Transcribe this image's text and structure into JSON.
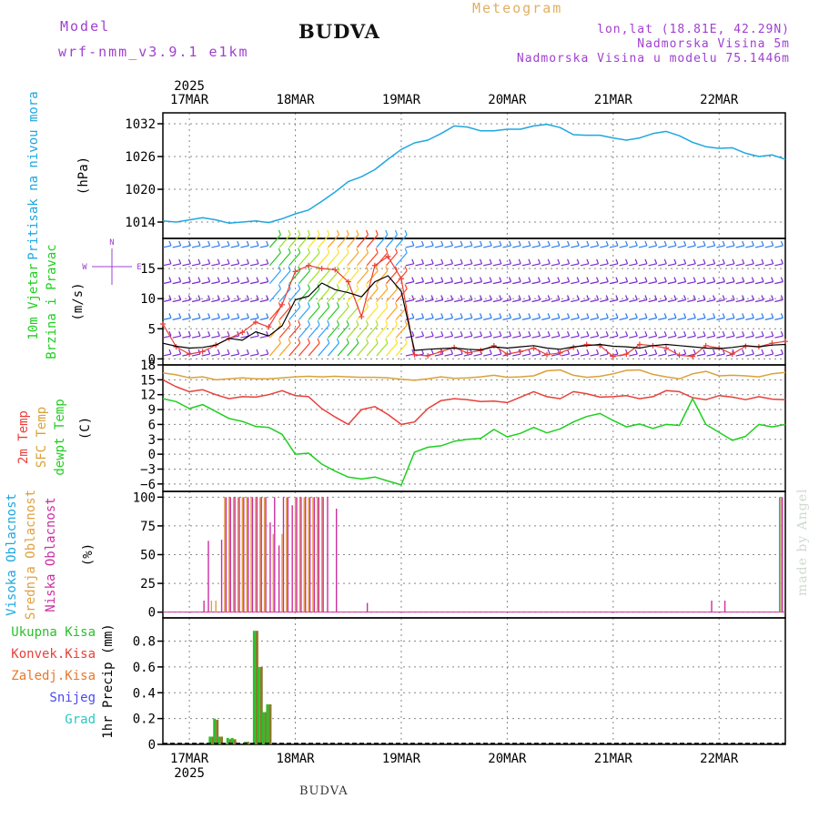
{
  "header": {
    "model_label": "Model",
    "model_name": "wrf-nmm_v3.9.1 e1km",
    "station_title": "BUDVA",
    "product_title": "Meteogram",
    "lonlat": "lon,lat (18.81E, 42.29N)",
    "elevation": "Nadmorska Visina 5m",
    "model_elevation": "Nadmorska Visina u modelu 75.1446m",
    "credit": "made by Angel",
    "footer_station": "BUDVA"
  },
  "colors": {
    "pressure": "#1ea7e1",
    "wind_speed": "#000000",
    "wind_gust": "#e8403a",
    "t2m": "#e8403a",
    "sfc": "#d9a23a",
    "dewpt": "#1fcf1f",
    "cloud_high": "#1ea7e1",
    "cloud_mid": "#e0a040",
    "cloud_low": "#cc2fa0",
    "precip_total": "#2bbf2b",
    "precip_conv": "#e8403a",
    "precip_frozen": "#e8782a",
    "precip_snow": "#4a4af0",
    "precip_graupel": "#2ac8c8",
    "axis_label_purple": "#a040d0"
  },
  "chart_data": [
    {
      "type": "line",
      "name": "pressure",
      "ylabel_lines": [
        "Pritisak na nivou mora"
      ],
      "unit": "(hPa)",
      "ylim": [
        1011,
        1034
      ],
      "yticks": [
        1014,
        1020,
        1026,
        1032
      ],
      "xlim": [
        0,
        141
      ],
      "x_date_labels": [
        "17MAR",
        "18MAR",
        "19MAR",
        "20MAR",
        "21MAR",
        "22MAR"
      ],
      "x_date_hours": [
        6,
        30,
        54,
        78,
        102,
        126
      ],
      "year": "2025",
      "grid": true,
      "series": [
        {
          "name": "pressure",
          "x": [
            0,
            3,
            6,
            9,
            12,
            15,
            18,
            21,
            24,
            27,
            30,
            33,
            36,
            39,
            42,
            45,
            48,
            51,
            54,
            57,
            60,
            63,
            66,
            69,
            72,
            75,
            78,
            81,
            84,
            87,
            90,
            93,
            96,
            99,
            102,
            105,
            108,
            111,
            114,
            117,
            120,
            123,
            126,
            129,
            132,
            135,
            138,
            141
          ],
          "values": [
            1014.2,
            1014.0,
            1014.4,
            1014.8,
            1014.4,
            1013.8,
            1014.0,
            1014.2,
            1013.9,
            1014.6,
            1015.5,
            1016.2,
            1017.8,
            1019.5,
            1021.4,
            1022.3,
            1023.6,
            1025.5,
            1027.3,
            1028.5,
            1029.0,
            1030.2,
            1031.6,
            1031.4,
            1030.7,
            1030.7,
            1031.0,
            1031.0,
            1031.6,
            1031.9,
            1031.3,
            1030.0,
            1029.9,
            1029.9,
            1029.4,
            1029.0,
            1029.4,
            1030.2,
            1030.6,
            1029.8,
            1028.6,
            1027.8,
            1027.5,
            1027.6,
            1026.6,
            1026.0,
            1026.3,
            1025.5
          ]
        }
      ]
    },
    {
      "type": "line",
      "name": "wind",
      "ylabel_lines": [
        "10m Vjetar",
        "Brzina i Pravac"
      ],
      "unit": "(m/s)",
      "compass": "N ^ E > W <",
      "ylim": [
        -1,
        20
      ],
      "yticks": [
        0,
        5,
        10,
        15
      ],
      "xlim": [
        0,
        141
      ],
      "grid": true,
      "series": [
        {
          "name": "speed",
          "x": [
            0,
            3,
            6,
            9,
            12,
            15,
            18,
            21,
            24,
            27,
            30,
            33,
            36,
            39,
            42,
            45,
            48,
            51,
            54,
            57,
            60,
            63,
            66,
            69,
            72,
            75,
            78,
            81,
            84,
            87,
            90,
            93,
            96,
            99,
            102,
            105,
            108,
            111,
            114,
            117,
            120,
            123,
            126,
            129,
            132,
            135,
            138,
            141
          ],
          "values": [
            2.6,
            2.1,
            1.8,
            1.9,
            2.3,
            3.4,
            3.1,
            4.5,
            3.8,
            5.5,
            9.8,
            10.4,
            12.6,
            11.5,
            11.0,
            10.3,
            12.8,
            13.8,
            11.2,
            1.4,
            1.6,
            1.7,
            1.8,
            1.6,
            1.5,
            2.0,
            1.8,
            2.0,
            2.2,
            1.8,
            1.6,
            2.0,
            2.2,
            2.4,
            2.1,
            2.0,
            1.8,
            2.2,
            2.4,
            2.2,
            2.0,
            1.8,
            1.7,
            1.9,
            2.2,
            2.0,
            2.3,
            2.4
          ]
        },
        {
          "name": "gust",
          "x": [
            0,
            3,
            6,
            9,
            12,
            15,
            18,
            21,
            24,
            27,
            30,
            33,
            36,
            39,
            42,
            45,
            48,
            51,
            54,
            57,
            60,
            63,
            66,
            69,
            72,
            75,
            78,
            81,
            84,
            87,
            90,
            93,
            96,
            99,
            102,
            105,
            108,
            111,
            114,
            117,
            120,
            123,
            126,
            129,
            132,
            135,
            138,
            141
          ],
          "values": [
            5.8,
            2.0,
            0.8,
            1.2,
            2.3,
            3.4,
            4.4,
            6.1,
            5.3,
            9.0,
            14.5,
            15.5,
            15.0,
            14.8,
            12.8,
            7.0,
            15.5,
            17.0,
            13.3,
            0.7,
            0.5,
            1.2,
            1.9,
            1.0,
            1.4,
            2.2,
            0.8,
            1.2,
            1.8,
            0.7,
            1.0,
            1.9,
            2.4,
            2.2,
            0.4,
            0.8,
            2.4,
            2.2,
            1.8,
            0.6,
            0.4,
            2.2,
            1.8,
            0.8,
            2.1,
            2.0,
            2.6,
            2.9
          ]
        }
      ]
    },
    {
      "type": "line",
      "name": "temperature",
      "ylabel_lines": [
        "2m Temp",
        "SFC Temp",
        "dewpt Temp"
      ],
      "unit": "(C)",
      "ylim": [
        -7.5,
        18
      ],
      "yticks": [
        -6,
        -3,
        0,
        3,
        6,
        9,
        12,
        15,
        18
      ],
      "xlim": [
        0,
        141
      ],
      "grid": true,
      "series": [
        {
          "name": "2m Temp",
          "x": [
            0,
            3,
            6,
            9,
            12,
            15,
            18,
            21,
            24,
            27,
            30,
            33,
            36,
            39,
            42,
            45,
            48,
            51,
            54,
            57,
            60,
            63,
            66,
            69,
            72,
            75,
            78,
            81,
            84,
            87,
            90,
            93,
            96,
            99,
            102,
            105,
            108,
            111,
            114,
            117,
            120,
            123,
            126,
            129,
            132,
            135,
            138,
            141
          ],
          "values": [
            15.0,
            13.6,
            12.6,
            13.0,
            12.0,
            11.2,
            11.6,
            11.5,
            12.0,
            12.8,
            11.8,
            11.6,
            9.2,
            7.5,
            6.0,
            9.0,
            9.6,
            8.0,
            6.0,
            6.5,
            9.2,
            10.8,
            11.2,
            11.0,
            10.6,
            10.7,
            10.4,
            11.5,
            12.6,
            11.6,
            11.2,
            12.6,
            12.2,
            11.5,
            11.6,
            11.8,
            11.2,
            11.6,
            12.8,
            12.6,
            11.4,
            11.0,
            11.8,
            11.5,
            11.0,
            11.6,
            11.1,
            11.0
          ]
        },
        {
          "name": "SFC Temp",
          "x": [
            0,
            3,
            6,
            9,
            12,
            15,
            18,
            21,
            24,
            27,
            30,
            33,
            36,
            39,
            42,
            45,
            48,
            51,
            54,
            57,
            60,
            63,
            66,
            69,
            72,
            75,
            78,
            81,
            84,
            87,
            90,
            93,
            96,
            99,
            102,
            105,
            108,
            111,
            114,
            117,
            120,
            123,
            126,
            129,
            132,
            135,
            138,
            141
          ],
          "values": [
            16.4,
            16.0,
            15.4,
            15.6,
            15.0,
            15.2,
            15.4,
            15.2,
            15.2,
            15.4,
            15.6,
            15.7,
            15.6,
            15.7,
            15.6,
            15.5,
            15.5,
            15.4,
            15.1,
            14.9,
            15.2,
            15.6,
            15.3,
            15.4,
            15.6,
            15.9,
            15.5,
            15.6,
            15.8,
            16.8,
            17.0,
            15.9,
            15.5,
            15.7,
            16.2,
            16.9,
            17.0,
            16.1,
            15.6,
            15.2,
            16.2,
            16.7,
            15.8,
            15.9,
            15.8,
            15.6,
            16.2,
            16.5
          ]
        },
        {
          "name": "dewpt Temp",
          "x": [
            0,
            3,
            6,
            9,
            12,
            15,
            18,
            21,
            24,
            27,
            30,
            33,
            36,
            39,
            42,
            45,
            48,
            51,
            54,
            57,
            60,
            63,
            66,
            69,
            72,
            75,
            78,
            81,
            84,
            87,
            90,
            93,
            96,
            99,
            102,
            105,
            108,
            111,
            114,
            117,
            120,
            123,
            126,
            129,
            132,
            135,
            138,
            141
          ],
          "values": [
            11.2,
            10.6,
            9.2,
            10.0,
            8.6,
            7.2,
            6.6,
            5.6,
            5.4,
            4.0,
            0.0,
            0.2,
            -2.0,
            -3.4,
            -4.6,
            -5.0,
            -4.6,
            -5.4,
            -6.2,
            0.4,
            1.4,
            1.7,
            2.6,
            3.0,
            3.2,
            5.0,
            3.5,
            4.2,
            5.4,
            4.3,
            5.1,
            6.5,
            7.6,
            8.2,
            6.8,
            5.5,
            6.1,
            5.2,
            6.0,
            5.8,
            11.2,
            6.0,
            4.4,
            2.8,
            3.6,
            6.0,
            5.5,
            6.0
          ]
        }
      ]
    },
    {
      "type": "bar",
      "name": "clouds",
      "ylabel_lines": [
        "Visoka Oblacnost",
        "Srednja Oblacnost",
        "Niska Oblacnost"
      ],
      "unit": "(%)",
      "ylim": [
        -5,
        105
      ],
      "yticks": [
        0,
        25,
        50,
        75,
        100
      ],
      "xlim": [
        0,
        141
      ],
      "grid": true,
      "x": [
        9,
        10,
        11,
        12,
        13,
        14,
        15,
        16,
        17,
        18,
        19,
        20,
        21,
        22,
        23,
        24,
        25,
        26,
        27,
        28,
        29,
        30,
        31,
        32,
        33,
        34,
        35,
        36,
        37,
        39,
        46,
        124,
        127,
        140
      ],
      "series": [
        {
          "name": "Visoka Oblacnost",
          "values": [
            0,
            0,
            0,
            0,
            0,
            0,
            0,
            0,
            0,
            0,
            0,
            0,
            0,
            0,
            0,
            0,
            0,
            0,
            0,
            0,
            0,
            0,
            0,
            0,
            0,
            0,
            0,
            0,
            0,
            0,
            0,
            0,
            0,
            100
          ]
        },
        {
          "name": "Srednja Oblacnost",
          "values": [
            0,
            0,
            10,
            10,
            0,
            100,
            100,
            100,
            100,
            100,
            100,
            100,
            100,
            100,
            100,
            0,
            68,
            0,
            68,
            100,
            0,
            100,
            100,
            100,
            100,
            100,
            100,
            100,
            0,
            0,
            0,
            0,
            0,
            100
          ]
        },
        {
          "name": "Niska Oblacnost",
          "values": [
            10,
            62,
            0,
            0,
            63,
            100,
            100,
            100,
            100,
            100,
            100,
            100,
            100,
            100,
            100,
            78,
            100,
            58,
            100,
            100,
            93,
            100,
            100,
            100,
            100,
            100,
            100,
            100,
            100,
            90,
            8,
            10,
            10,
            100
          ]
        }
      ]
    },
    {
      "type": "bar",
      "name": "precip",
      "ylabel_lines": [
        "1hr Precip (mm)"
      ],
      "unit": "",
      "legend": [
        "Ukupna Kisa",
        "Konvek.Kisa",
        "Zaledj.Kisa",
        "Snijeg",
        "Grad"
      ],
      "ylim": [
        0,
        0.98
      ],
      "yticks": [
        0,
        0.2,
        0.4,
        0.6,
        0.8
      ],
      "xlim": [
        0,
        141
      ],
      "grid": true,
      "x": [
        11,
        12,
        13,
        14,
        15,
        16,
        17,
        18,
        19,
        20,
        21,
        22,
        23,
        24,
        25
      ],
      "series": [
        {
          "name": "Ukupna Kisa",
          "values": [
            0.06,
            0.2,
            0.06,
            0,
            0.05,
            0.05,
            0,
            0,
            0.02,
            0,
            0.88,
            0.6,
            0.25,
            0.31,
            0
          ]
        },
        {
          "name": "Konvek.Kisa",
          "values": [
            0.06,
            0.19,
            0.06,
            0,
            0.04,
            0.04,
            0,
            0,
            0.02,
            0,
            0.88,
            0.6,
            0.25,
            0.31,
            0
          ]
        },
        {
          "name": "Zaledj.Kisa",
          "values": [
            0,
            0,
            0,
            0,
            0,
            0,
            0,
            0,
            0,
            0,
            0,
            0,
            0,
            0,
            0
          ]
        },
        {
          "name": "Snijeg",
          "values": [
            0,
            0,
            0,
            0,
            0,
            0,
            0,
            0,
            0,
            0,
            0,
            0,
            0,
            0,
            0
          ]
        },
        {
          "name": "Grad",
          "values": [
            0,
            0,
            0,
            0,
            0,
            0,
            0,
            0,
            0,
            0,
            0,
            0,
            0,
            0,
            0
          ]
        }
      ]
    }
  ]
}
